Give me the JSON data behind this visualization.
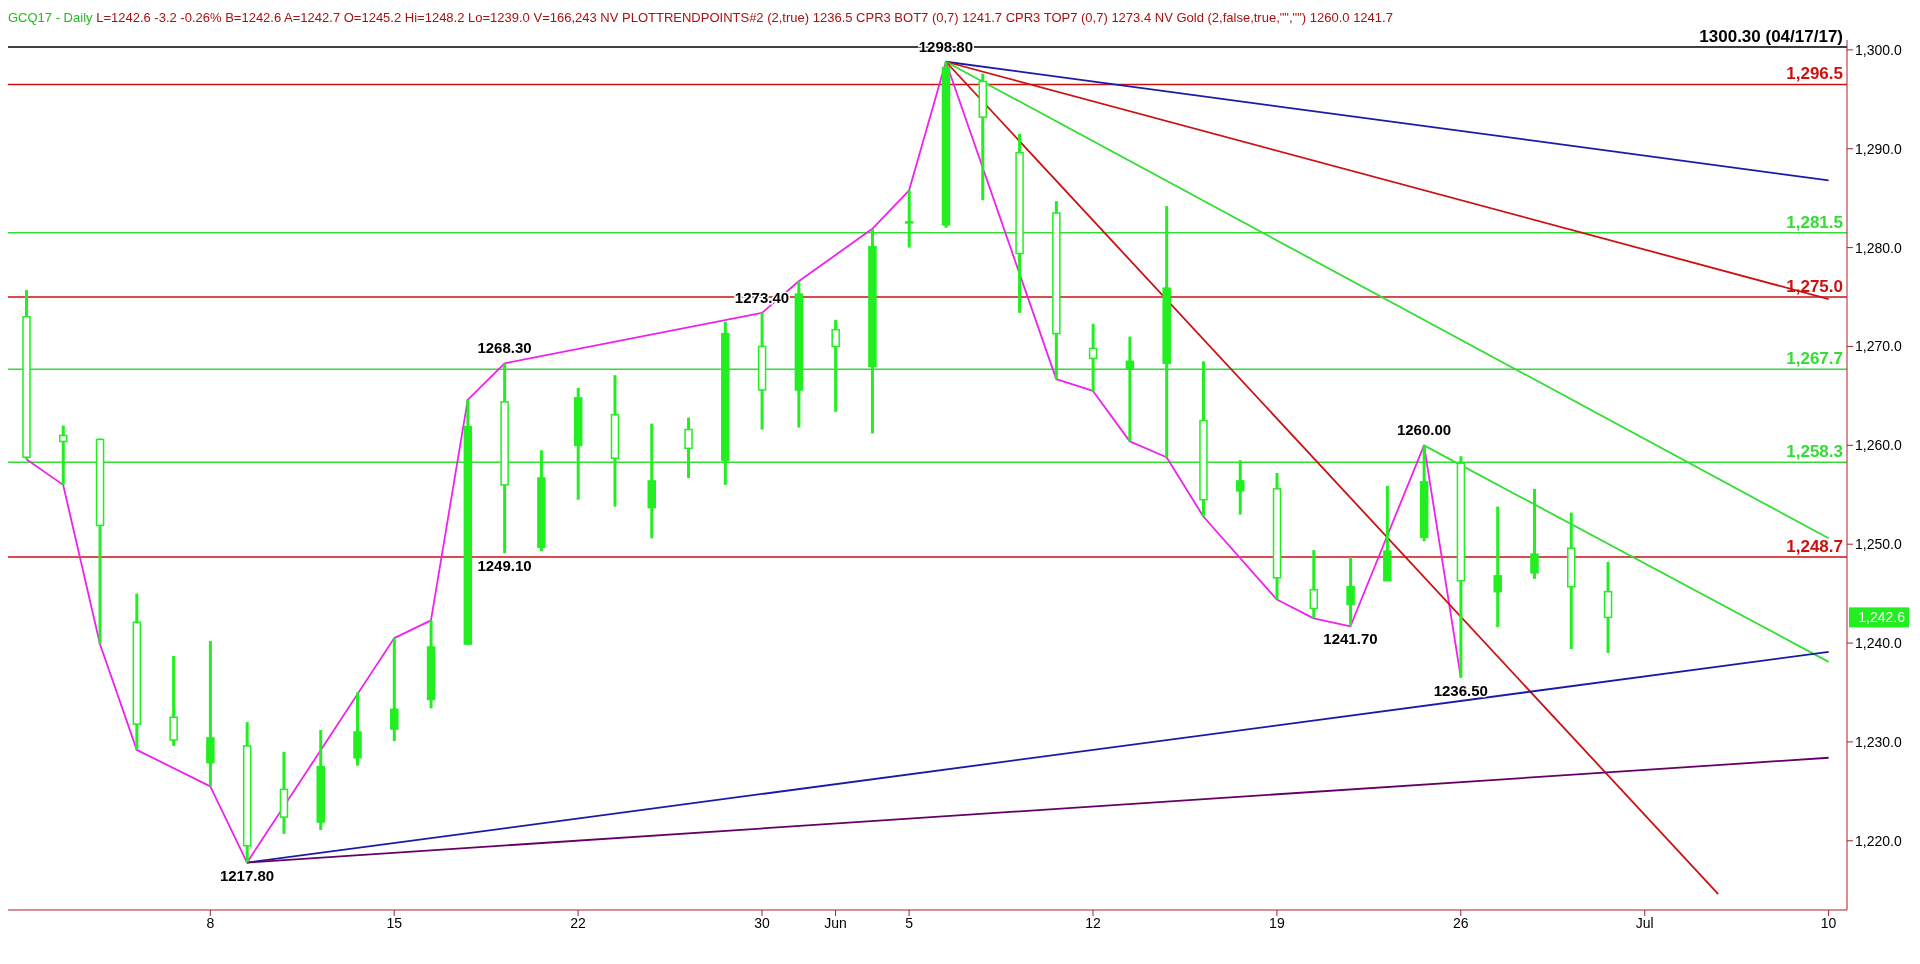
{
  "chart_data": {
    "type": "candlestick",
    "title": "GCQ17 - Daily",
    "subtitle": "L=1242.6 -3.2 -0.26% B=1242.6 A=1242.7 O=1245.2 Hi=1248.2 Lo=1239.0 V=166,243 NV PLOTTRENDPOINTS#2 (2,true) 1236.5 CPR3 BOT7 (0,7) 1241.7 CPR3 TOP7 (0,7) 1273.4 NV Gold (2,false,true,\"\",\"\") 1260.0 1241.7",
    "categories": [
      null,
      null,
      null,
      null,
      null,
      "8",
      null,
      null,
      null,
      null,
      "15",
      null,
      null,
      null,
      null,
      "22",
      null,
      null,
      null,
      null,
      "30",
      null,
      "Jun",
      null,
      "5",
      null,
      null,
      null,
      null,
      "12",
      null,
      null,
      null,
      null,
      "19",
      null,
      null,
      null,
      null,
      "26",
      null,
      null,
      null,
      null,
      "Jul",
      null,
      null,
      null,
      null,
      "10"
    ],
    "color": "#22ee22",
    "ohlc": [
      [
        1273.0,
        1275.7,
        1258.6,
        1258.8
      ],
      [
        1261.0,
        1262.0,
        1256.0,
        1260.4
      ],
      [
        1260.6,
        1260.7,
        1239.9,
        1251.9
      ],
      [
        1242.1,
        1245.0,
        1229.2,
        1231.8
      ],
      [
        1232.5,
        1238.7,
        1229.6,
        1230.2
      ],
      [
        1227.9,
        1240.2,
        1225.5,
        1230.4
      ],
      [
        1229.6,
        1232.0,
        1217.8,
        1219.5
      ],
      [
        1225.2,
        1229.0,
        1220.7,
        1222.4
      ],
      [
        1221.9,
        1231.2,
        1221.1,
        1227.5
      ],
      [
        1228.4,
        1235.0,
        1227.6,
        1231.0
      ],
      [
        1231.3,
        1240.5,
        1230.1,
        1233.3
      ],
      [
        1234.3,
        1242.3,
        1233.4,
        1239.6
      ],
      [
        1239.9,
        1264.6,
        1239.8,
        1261.9
      ],
      [
        1264.4,
        1268.3,
        1249.1,
        1256.0
      ],
      [
        1249.7,
        1259.5,
        1249.3,
        1256.7
      ],
      [
        1260.0,
        1265.8,
        1254.5,
        1264.8
      ],
      [
        1263.1,
        1267.1,
        1253.8,
        1258.7
      ],
      [
        1253.7,
        1262.2,
        1250.6,
        1256.4
      ],
      [
        1261.6,
        1262.8,
        1256.7,
        1259.7
      ],
      [
        1258.5,
        1272.5,
        1256.0,
        1271.3
      ],
      [
        1270.0,
        1273.4,
        1261.6,
        1265.6
      ],
      [
        1265.6,
        1276.6,
        1261.8,
        1275.3
      ],
      [
        1271.7,
        1272.7,
        1263.4,
        1270.0
      ],
      [
        1268.0,
        1281.9,
        1261.2,
        1280.1
      ],
      [
        1282.6,
        1285.8,
        1280.0,
        1282.6
      ],
      [
        1282.3,
        1298.8,
        1282.0,
        1298.2
      ],
      [
        1296.8,
        1297.6,
        1284.8,
        1293.2
      ],
      [
        1289.6,
        1291.5,
        1273.4,
        1279.4
      ],
      [
        1283.5,
        1284.7,
        1266.7,
        1271.3
      ],
      [
        1269.8,
        1272.3,
        1265.5,
        1268.8
      ],
      [
        1267.7,
        1271.0,
        1260.4,
        1268.5
      ],
      [
        1268.3,
        1284.2,
        1258.8,
        1275.9
      ],
      [
        1262.5,
        1268.5,
        1252.8,
        1254.5
      ],
      [
        1255.4,
        1258.5,
        1253.0,
        1256.4
      ],
      [
        1255.6,
        1257.2,
        1244.4,
        1246.6
      ],
      [
        1245.4,
        1249.4,
        1242.5,
        1243.5
      ],
      [
        1243.9,
        1248.7,
        1241.7,
        1245.7
      ],
      [
        1246.3,
        1255.9,
        1246.3,
        1249.3
      ],
      [
        1250.7,
        1260.0,
        1250.3,
        1256.3
      ],
      [
        1258.2,
        1258.9,
        1236.5,
        1246.3
      ],
      [
        1245.2,
        1253.8,
        1241.6,
        1246.8
      ],
      [
        1247.1,
        1255.6,
        1246.5,
        1249.0
      ],
      [
        1249.6,
        1253.2,
        1239.4,
        1245.7
      ],
      [
        1245.2,
        1248.2,
        1239.0,
        1242.6
      ],
      null,
      null,
      null,
      null,
      null,
      null
    ],
    "series": [
      {
        "type": "line",
        "color": "#ee22ee",
        "values": [
          1258.6,
          1256.0,
          1239.9,
          1229.2,
          null,
          1225.5,
          1217.8,
          null,
          null,
          null,
          1240.5,
          1242.3,
          1264.6,
          1268.3,
          null,
          null,
          null,
          null,
          null,
          null,
          1273.4,
          1276.6,
          null,
          1281.9,
          1285.8,
          1298.8,
          null,
          null,
          1266.7,
          1265.5,
          1260.4,
          1258.8,
          1252.8,
          null,
          1244.4,
          1242.5,
          1241.7,
          null,
          1260.0,
          1236.5,
          null,
          null,
          null,
          null,
          null,
          null,
          null,
          null,
          null,
          null
        ]
      },
      {
        "type": "line",
        "color": "#1a1aa8",
        "values": [
          null,
          null,
          null,
          null,
          null,
          null,
          null,
          null,
          null,
          null,
          null,
          null,
          null,
          null,
          null,
          null,
          null,
          null,
          null,
          null,
          null,
          null,
          null,
          null,
          null,
          1298.8,
          null,
          null,
          null,
          null,
          null,
          null,
          null,
          null,
          null,
          null,
          null,
          null,
          null,
          null,
          null,
          null,
          null,
          null,
          null,
          null,
          null,
          null,
          null,
          1286.8
        ]
      },
      {
        "type": "line",
        "color": "#cc1111",
        "values": [
          null,
          null,
          null,
          null,
          null,
          null,
          null,
          null,
          null,
          null,
          null,
          null,
          null,
          null,
          null,
          null,
          null,
          null,
          null,
          null,
          null,
          null,
          null,
          null,
          null,
          1298.8,
          null,
          null,
          null,
          null,
          null,
          null,
          null,
          null,
          null,
          null,
          null,
          null,
          null,
          null,
          null,
          null,
          null,
          null,
          null,
          null,
          null,
          null,
          null,
          1274.8
        ]
      },
      {
        "type": "line",
        "color": "#33dd33",
        "values": [
          null,
          null,
          null,
          null,
          null,
          null,
          null,
          null,
          null,
          null,
          null,
          null,
          null,
          null,
          null,
          null,
          null,
          null,
          null,
          null,
          null,
          null,
          null,
          null,
          null,
          1298.8,
          null,
          null,
          null,
          null,
          null,
          null,
          null,
          null,
          null,
          null,
          null,
          null,
          null,
          null,
          null,
          null,
          null,
          null,
          null,
          null,
          null,
          null,
          null,
          1250.6
        ]
      },
      {
        "type": "line",
        "color": "#cc1111",
        "values": [
          null,
          null,
          null,
          null,
          null,
          null,
          null,
          null,
          null,
          null,
          null,
          null,
          null,
          null,
          null,
          null,
          null,
          null,
          null,
          null,
          null,
          null,
          null,
          null,
          null,
          1298.8,
          null,
          null,
          null,
          null,
          null,
          null,
          null,
          null,
          null,
          null,
          null,
          null,
          null,
          null,
          null,
          null,
          null,
          null,
          null,
          null,
          1214.6,
          null,
          null,
          null
        ]
      },
      {
        "type": "line",
        "color": "#33dd33",
        "values": [
          null,
          null,
          null,
          null,
          null,
          null,
          null,
          null,
          null,
          null,
          null,
          null,
          null,
          null,
          null,
          null,
          null,
          null,
          null,
          null,
          null,
          null,
          null,
          null,
          null,
          null,
          null,
          null,
          null,
          null,
          null,
          null,
          null,
          null,
          null,
          null,
          null,
          null,
          1260.0,
          null,
          null,
          null,
          null,
          null,
          null,
          null,
          null,
          null,
          null,
          1238.1
        ]
      },
      {
        "type": "line",
        "color": "#1a1aa8",
        "values": [
          null,
          null,
          null,
          null,
          null,
          null,
          1217.8,
          null,
          null,
          null,
          null,
          null,
          null,
          null,
          null,
          null,
          null,
          null,
          null,
          null,
          null,
          null,
          null,
          null,
          null,
          null,
          null,
          null,
          null,
          null,
          null,
          null,
          null,
          null,
          null,
          null,
          null,
          null,
          null,
          null,
          null,
          null,
          null,
          null,
          null,
          null,
          null,
          null,
          null,
          1239.1
        ]
      },
      {
        "type": "line",
        "color": "#660066",
        "values": [
          null,
          null,
          null,
          null,
          null,
          null,
          1217.8,
          null,
          null,
          null,
          null,
          null,
          null,
          null,
          null,
          null,
          null,
          null,
          null,
          null,
          null,
          null,
          null,
          null,
          null,
          null,
          null,
          null,
          null,
          null,
          null,
          null,
          null,
          null,
          null,
          null,
          null,
          null,
          null,
          null,
          null,
          null,
          null,
          null,
          null,
          null,
          null,
          null,
          null,
          1228.4
        ]
      }
    ],
    "ylim": [
      1213,
      1301
    ],
    "yticks": [
      {
        "value": 1220,
        "label": "1,220.0"
      },
      {
        "value": 1230,
        "label": "1,230.0"
      },
      {
        "value": 1240,
        "label": "1,240.0"
      },
      {
        "value": 1250,
        "label": "1,250.0"
      },
      {
        "value": 1260,
        "label": "1,260.0"
      },
      {
        "value": 1270,
        "label": "1,270.0"
      },
      {
        "value": 1280,
        "label": "1,280.0"
      },
      {
        "value": 1290,
        "label": "1,290.0"
      },
      {
        "value": 1300,
        "label": "1,300.0"
      }
    ],
    "ref_lines": [
      {
        "axis": "y",
        "value": 1300.3,
        "label": "1300.30 (04/17/17)",
        "color": "#000000"
      },
      {
        "axis": "y",
        "value": 1296.5,
        "label": "1,296.5",
        "color": "#cc1111"
      },
      {
        "axis": "y",
        "value": 1281.5,
        "label": "1,281.5",
        "color": "#33dd33"
      },
      {
        "axis": "y",
        "value": 1275.0,
        "label": "1,275.0",
        "color": "#cc1111"
      },
      {
        "axis": "y",
        "value": 1267.7,
        "label": "1,267.7",
        "color": "#33dd33"
      },
      {
        "axis": "y",
        "value": 1258.3,
        "label": "1,258.3",
        "color": "#33dd33"
      },
      {
        "axis": "y",
        "value": 1248.7,
        "label": "1,248.7",
        "color": "#cc1111"
      }
    ],
    "annotations": [
      {
        "text": "1298.80",
        "y": 1298.8
      },
      {
        "text": "1268.30",
        "y": 1268.3
      },
      {
        "text": "1273.40",
        "y": 1273.4
      },
      {
        "text": "1260.00",
        "y": 1260.0
      },
      {
        "text": "1217.80",
        "y": 1217.8
      },
      {
        "text": "1249.10",
        "y": 1249.1
      },
      {
        "text": "1241.70",
        "y": 1241.7
      },
      {
        "text": "1236.50",
        "y": 1236.5
      },
      "1,242.6"
    ]
  }
}
